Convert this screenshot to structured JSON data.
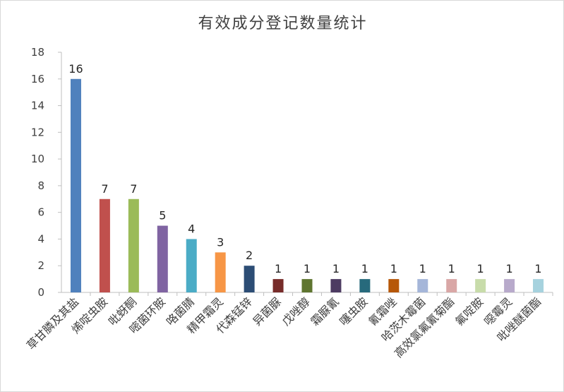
{
  "chart_data": {
    "type": "bar",
    "title": "有效成分登记数量统计",
    "xlabel": "",
    "ylabel": "",
    "ylim": [
      0,
      18
    ],
    "yticks": [
      0,
      2,
      4,
      6,
      8,
      10,
      12,
      14,
      16,
      18
    ],
    "grid": false,
    "legend": "none",
    "categories": [
      "草甘膦及其盐",
      "烯啶虫胺",
      "吡蚜酮",
      "嘧菌环胺",
      "咯菌腈",
      "精甲霜灵",
      "代森锰锌",
      "异菌脲",
      "戊唑醇",
      "霜脲氰",
      "噻虫胺",
      "氰霜唑",
      "哈茨木霉菌",
      "高效氯氟氰菊酯",
      "氟啶胺",
      "噁霉灵",
      "吡唑醚菌酯"
    ],
    "values": [
      16,
      7,
      7,
      5,
      4,
      3,
      2,
      1,
      1,
      1,
      1,
      1,
      1,
      1,
      1,
      1,
      1
    ],
    "colors": [
      "#4f81bd",
      "#c0504d",
      "#9bbb59",
      "#8064a2",
      "#4bacc6",
      "#f79646",
      "#2c4d75",
      "#772c2a",
      "#5f7530",
      "#4d3b62",
      "#276a7c",
      "#b65708",
      "#a5b6d9",
      "#d9a7a6",
      "#c8dcaa",
      "#b8aacb",
      "#a6d2de"
    ]
  }
}
